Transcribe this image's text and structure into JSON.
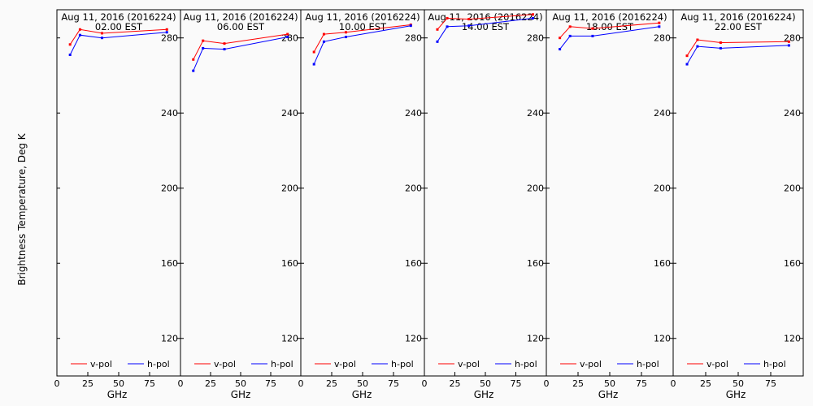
{
  "figure": {
    "ylabel": "Brightness Temperature, Deg K",
    "xlabel": "GHz",
    "colors": {
      "background": "#fafafa",
      "frame": "#000000",
      "vpol": "#ff0000",
      "hpol": "#0000ff"
    }
  },
  "chart_data": [
    {
      "type": "line",
      "title": "Aug 11, 2016 (2016224)",
      "subtitle": "02.00 EST",
      "xlabel": "GHz",
      "x_ticks": [
        "0",
        "25",
        "50",
        "75"
      ],
      "y_ticks": [
        "120",
        "160",
        "200",
        "240",
        "280"
      ],
      "xlim": [
        0,
        100
      ],
      "ylim": [
        100,
        295
      ],
      "x": [
        10.65,
        18.7,
        36.5,
        89
      ],
      "series": [
        {
          "name": "v-pol",
          "color": "#ff0000",
          "values": [
            276.5,
            284.5,
            282.5,
            284.5
          ]
        },
        {
          "name": "h-pol",
          "color": "#0000ff",
          "values": [
            271,
            281.5,
            280,
            283
          ]
        }
      ],
      "legend": "bottom"
    },
    {
      "type": "line",
      "title": "Aug 11, 2016 (2016224)",
      "subtitle": "06.00 EST",
      "xlabel": "GHz",
      "x_ticks": [
        "0",
        "25",
        "50",
        "75"
      ],
      "y_ticks": [
        "120",
        "160",
        "200",
        "240",
        "280"
      ],
      "xlim": [
        0,
        100
      ],
      "ylim": [
        100,
        295
      ],
      "x": [
        10.65,
        18.7,
        36.5,
        89
      ],
      "series": [
        {
          "name": "v-pol",
          "color": "#ff0000",
          "values": [
            268.5,
            278.5,
            277,
            282
          ]
        },
        {
          "name": "h-pol",
          "color": "#0000ff",
          "values": [
            262.5,
            274.5,
            274,
            280.5
          ]
        }
      ],
      "legend": "bottom"
    },
    {
      "type": "line",
      "title": "Aug 11, 2016 (2016224)",
      "subtitle": "10.00 EST",
      "xlabel": "GHz",
      "x_ticks": [
        "0",
        "25",
        "50",
        "75"
      ],
      "y_ticks": [
        "120",
        "160",
        "200",
        "240",
        "280"
      ],
      "xlim": [
        0,
        100
      ],
      "ylim": [
        100,
        295
      ],
      "x": [
        10.65,
        18.7,
        36.5,
        89
      ],
      "series": [
        {
          "name": "v-pol",
          "color": "#ff0000",
          "values": [
            272.5,
            282,
            283,
            287
          ]
        },
        {
          "name": "h-pol",
          "color": "#0000ff",
          "values": [
            266,
            278,
            280.5,
            286.5
          ]
        }
      ],
      "legend": "bottom"
    },
    {
      "type": "line",
      "title": "Aug 11, 2016 (2016224)",
      "subtitle": "14.00 EST",
      "xlabel": "GHz",
      "x_ticks": [
        "0",
        "25",
        "50",
        "75"
      ],
      "y_ticks": [
        "120",
        "160",
        "200",
        "240",
        "280"
      ],
      "xlim": [
        0,
        100
      ],
      "ylim": [
        100,
        295
      ],
      "x": [
        10.65,
        18.7,
        36.5,
        89
      ],
      "series": [
        {
          "name": "v-pol",
          "color": "#ff0000",
          "values": [
            284.5,
            290.5,
            290,
            292.5
          ]
        },
        {
          "name": "h-pol",
          "color": "#0000ff",
          "values": [
            278,
            286,
            286.5,
            290.5
          ]
        }
      ],
      "legend": "bottom"
    },
    {
      "type": "line",
      "title": "Aug 11, 2016 (2016224)",
      "subtitle": "18.00 EST",
      "xlabel": "GHz",
      "x_ticks": [
        "0",
        "25",
        "50",
        "75"
      ],
      "y_ticks": [
        "120",
        "160",
        "200",
        "240",
        "280"
      ],
      "xlim": [
        0,
        100
      ],
      "ylim": [
        100,
        295
      ],
      "x": [
        10.65,
        18.7,
        36.5,
        89
      ],
      "series": [
        {
          "name": "v-pol",
          "color": "#ff0000",
          "values": [
            280,
            286,
            285,
            288
          ]
        },
        {
          "name": "h-pol",
          "color": "#0000ff",
          "values": [
            274,
            281,
            281,
            286
          ]
        }
      ],
      "legend": "bottom"
    },
    {
      "type": "line",
      "title": "Aug 11, 2016 (2016224)",
      "subtitle": "22.00 EST",
      "xlabel": "GHz",
      "x_ticks": [
        "0",
        "25",
        "50",
        "75"
      ],
      "y_ticks": [
        "120",
        "160",
        "200",
        "240",
        "280"
      ],
      "xlim": [
        0,
        100
      ],
      "ylim": [
        100,
        295
      ],
      "x": [
        10.65,
        18.7,
        36.5,
        89
      ],
      "series": [
        {
          "name": "v-pol",
          "color": "#ff0000",
          "values": [
            270.5,
            279,
            277.5,
            278
          ]
        },
        {
          "name": "h-pol",
          "color": "#0000ff",
          "values": [
            266,
            275.5,
            274.5,
            276
          ]
        }
      ],
      "legend": "bottom"
    }
  ]
}
